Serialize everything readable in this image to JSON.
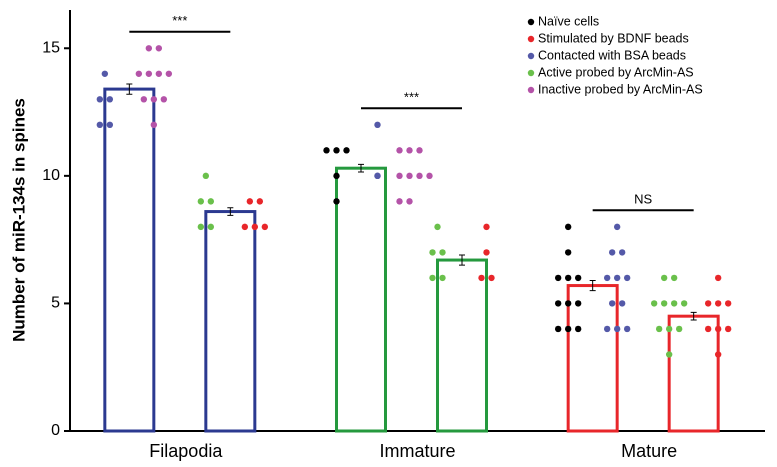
{
  "chart_data": {
    "type": "bar",
    "y_label": "Number of miR-134s in spines",
    "categories": [
      "Filapodia",
      "Immature",
      "Mature"
    ],
    "ylim": [
      0,
      16.5
    ],
    "yticks": [
      0,
      5,
      10,
      15
    ],
    "legend_position": "upper right",
    "series": [
      {
        "name": "Naïve cells",
        "color": "#000000"
      },
      {
        "name": "Stimulated by BDNF beads",
        "color": "#e8262a"
      },
      {
        "name": "Contacted with BSA beads",
        "color": "#5459a8"
      },
      {
        "name": "Active probed by ArcMin-AS",
        "color": "#6ac04b"
      },
      {
        "name": "Inactive probed by ArcMin-AS",
        "color": "#b453a8"
      }
    ],
    "bars": [
      {
        "category": 0,
        "value": 13.4,
        "error": 0.2,
        "color": "#2b3990",
        "dots": [
          {
            "series": 2,
            "values": [
              14,
              13,
              13,
              12,
              12
            ]
          },
          {
            "series": 4,
            "values": [
              15,
              15,
              14,
              14,
              14,
              14,
              13,
              13,
              13,
              12
            ]
          }
        ]
      },
      {
        "category": 0,
        "value": 8.6,
        "error": 0.15,
        "color": "#2b3990",
        "dots": [
          {
            "series": 3,
            "values": [
              10,
              9,
              9,
              8,
              8
            ]
          },
          {
            "series": 1,
            "values": [
              9,
              9,
              8,
              8,
              8
            ]
          }
        ]
      },
      {
        "category": 1,
        "value": 10.3,
        "error": 0.15,
        "color": "#25993e",
        "dots": [
          {
            "series": 0,
            "values": [
              11,
              11,
              11,
              10,
              9
            ]
          },
          {
            "series": 2,
            "values": [
              12,
              10,
              10
            ]
          },
          {
            "series": 4,
            "values": [
              11,
              11,
              11,
              10,
              10,
              10,
              10,
              9,
              9
            ]
          }
        ]
      },
      {
        "category": 1,
        "value": 6.7,
        "error": 0.2,
        "color": "#25993e",
        "dots": [
          {
            "series": 3,
            "values": [
              8,
              7,
              7,
              6,
              6
            ]
          },
          {
            "series": 1,
            "values": [
              8,
              7,
              6,
              6
            ]
          }
        ]
      },
      {
        "category": 2,
        "value": 5.7,
        "error": 0.2,
        "color": "#e8262a",
        "dots": [
          {
            "series": 0,
            "values": [
              8,
              7,
              6,
              6,
              6,
              5,
              5,
              5,
              4,
              4,
              4
            ]
          },
          {
            "series": 2,
            "values": [
              8,
              7,
              7,
              6,
              6,
              6,
              5,
              5,
              4,
              4,
              4
            ]
          }
        ]
      },
      {
        "category": 2,
        "value": 4.5,
        "error": 0.15,
        "color": "#e8262a",
        "dots": [
          {
            "series": 3,
            "values": [
              6,
              6,
              5,
              5,
              5,
              5,
              4,
              4,
              4,
              3
            ]
          },
          {
            "series": 1,
            "values": [
              6,
              5,
              5,
              5,
              4,
              4,
              4,
              3
            ]
          }
        ]
      }
    ],
    "significance": [
      {
        "category": 0,
        "label": "***"
      },
      {
        "category": 1,
        "label": "***"
      },
      {
        "category": 2,
        "label": "NS"
      }
    ]
  }
}
